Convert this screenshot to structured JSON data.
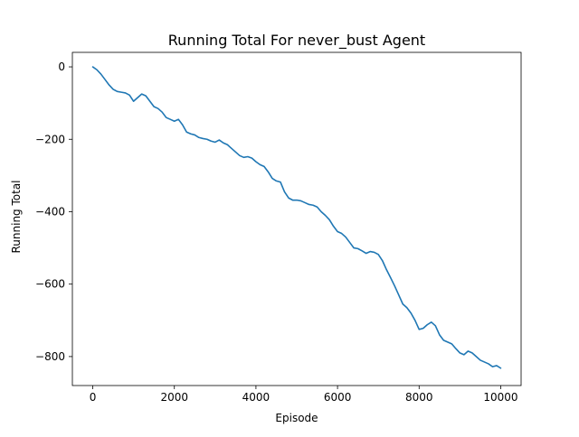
{
  "chart_data": {
    "type": "line",
    "title": "Running Total For never_bust Agent",
    "xlabel": "Episode",
    "ylabel": "Running Total",
    "xlim": [
      -500,
      10500
    ],
    "ylim": [
      -880,
      40
    ],
    "xticks": [
      0,
      2000,
      4000,
      6000,
      8000,
      10000
    ],
    "xtick_labels": [
      "0",
      "2000",
      "4000",
      "6000",
      "8000",
      "10000"
    ],
    "yticks": [
      0,
      -200,
      -400,
      -600,
      -800
    ],
    "ytick_labels": [
      "0",
      "−200",
      "−400",
      "−600",
      "−800"
    ],
    "grid": false,
    "legend": "none",
    "series": [
      {
        "color": "#1f77b4",
        "x": [
          0,
          100,
          200,
          300,
          400,
          500,
          600,
          700,
          800,
          900,
          1000,
          1100,
          1200,
          1300,
          1400,
          1500,
          1600,
          1700,
          1800,
          1900,
          2000,
          2100,
          2200,
          2300,
          2400,
          2500,
          2600,
          2700,
          2800,
          2900,
          3000,
          3100,
          3200,
          3300,
          3400,
          3500,
          3600,
          3700,
          3800,
          3900,
          4000,
          4100,
          4200,
          4300,
          4400,
          4500,
          4600,
          4700,
          4800,
          4900,
          5000,
          5100,
          5200,
          5300,
          5400,
          5500,
          5600,
          5700,
          5800,
          5900,
          6000,
          6100,
          6200,
          6300,
          6400,
          6500,
          6600,
          6700,
          6800,
          6900,
          7000,
          7100,
          7200,
          7300,
          7400,
          7500,
          7600,
          7700,
          7800,
          7900,
          8000,
          8100,
          8200,
          8300,
          8400,
          8500,
          8600,
          8700,
          8800,
          8900,
          9000,
          9100,
          9200,
          9300,
          9400,
          9500,
          9600,
          9700,
          9800,
          9900,
          10000
        ],
        "y": [
          0,
          -8,
          -20,
          -35,
          -50,
          -62,
          -68,
          -70,
          -72,
          -78,
          -95,
          -85,
          -75,
          -80,
          -95,
          -110,
          -115,
          -125,
          -140,
          -145,
          -150,
          -145,
          -160,
          -180,
          -185,
          -188,
          -195,
          -198,
          -200,
          -205,
          -208,
          -202,
          -210,
          -215,
          -225,
          -235,
          -245,
          -250,
          -248,
          -252,
          -262,
          -270,
          -275,
          -290,
          -308,
          -315,
          -318,
          -345,
          -362,
          -368,
          -368,
          -370,
          -375,
          -380,
          -382,
          -387,
          -400,
          -410,
          -422,
          -440,
          -455,
          -460,
          -470,
          -485,
          -500,
          -502,
          -508,
          -515,
          -510,
          -512,
          -518,
          -535,
          -560,
          -582,
          -605,
          -630,
          -655,
          -665,
          -680,
          -700,
          -725,
          -722,
          -712,
          -705,
          -715,
          -740,
          -755,
          -760,
          -765,
          -778,
          -790,
          -795,
          -785,
          -790,
          -800,
          -810,
          -815,
          -820,
          -828,
          -825,
          -832
        ]
      }
    ]
  }
}
